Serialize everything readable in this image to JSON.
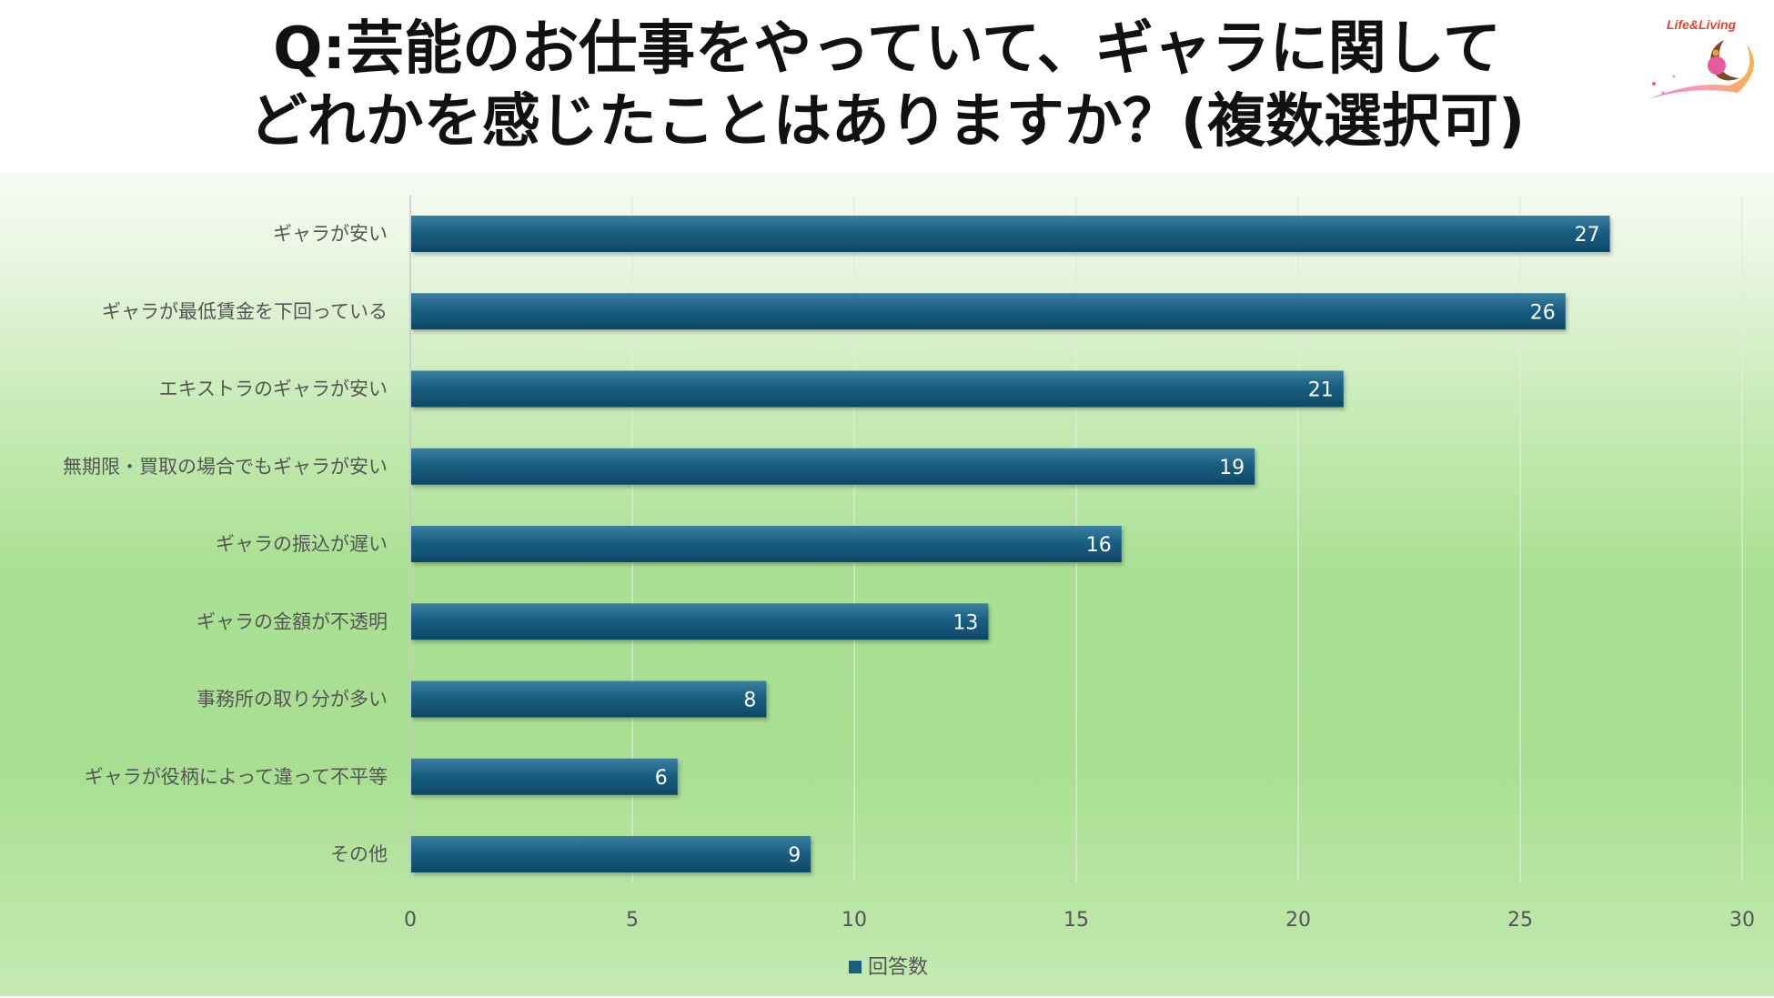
{
  "header": {
    "title_line1": "Q:芸能のお仕事をやっていて、ギャラに関して",
    "title_line2": "どれかを感じたことはありますか？(複数選択可)",
    "logo_text": "Life&Living"
  },
  "chart_data": {
    "type": "bar",
    "orientation": "horizontal",
    "categories": [
      "ギャラが安い",
      "ギャラが最低賃金を下回っている",
      "エキストラのギャラが安い",
      "無期限・買取の場合でもギャラが安い",
      "ギャラの振込が遅い",
      "ギャラの金額が不透明",
      "事務所の取り分が多い",
      "ギャラが役柄によって違って不平等",
      "その他"
    ],
    "series": [
      {
        "name": "回答数",
        "values": [
          27,
          26,
          21,
          19,
          16,
          13,
          8,
          6,
          9
        ]
      }
    ],
    "xlim": [
      0,
      30
    ],
    "xticks": [
      0,
      5,
      10,
      15,
      20,
      25,
      30
    ],
    "grid": true,
    "legend_position": "bottom",
    "colors": {
      "bar": "#1a5f82",
      "bar_dark": "#0f4a68",
      "bar_light": "#3a7fa0"
    }
  }
}
